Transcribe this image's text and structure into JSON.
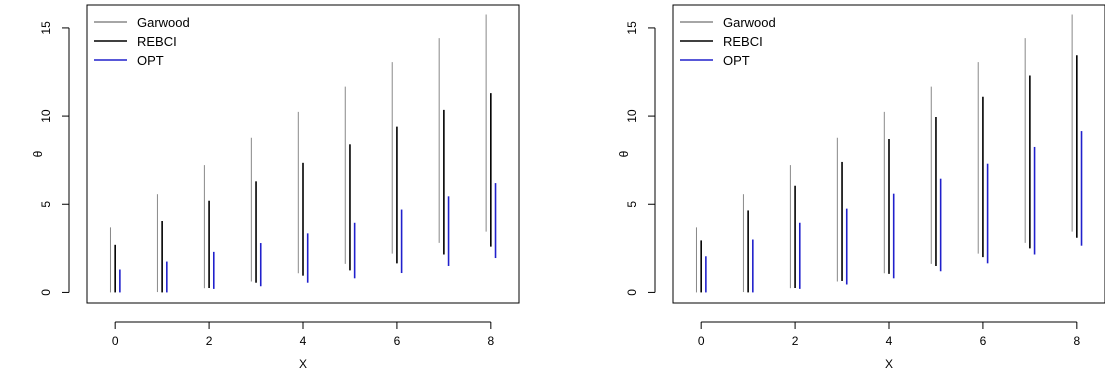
{
  "chart_data": [
    {
      "type": "interval",
      "xlabel": "X",
      "ylabel": "θ",
      "xlim": [
        -0.6,
        8.6
      ],
      "ylim": [
        -0.6,
        16.3
      ],
      "xticks": [
        0,
        2,
        4,
        6,
        8
      ],
      "yticks": [
        0,
        5,
        10,
        15
      ],
      "x": [
        0,
        1,
        2,
        3,
        4,
        5,
        6,
        7,
        8
      ],
      "legend_position": "top-left",
      "series": [
        {
          "name": "Garwood",
          "color": "#888888",
          "offset": -0.1,
          "lower": [
            0,
            0.02,
            0.24,
            0.62,
            1.09,
            1.62,
            2.2,
            2.81,
            3.45
          ],
          "upper": [
            3.69,
            5.57,
            7.22,
            8.77,
            10.24,
            11.67,
            13.06,
            14.42,
            15.76
          ]
        },
        {
          "name": "REBCI",
          "color": "#000000",
          "offset": 0,
          "lower": [
            0,
            0,
            0.25,
            0.55,
            0.95,
            1.25,
            1.65,
            2.15,
            2.6
          ],
          "upper": [
            2.7,
            4.05,
            5.2,
            6.3,
            7.35,
            8.4,
            9.4,
            10.35,
            11.3
          ]
        },
        {
          "name": "OPT",
          "color": "#2020cc",
          "offset": 0.1,
          "lower": [
            0,
            0,
            0.2,
            0.35,
            0.55,
            0.8,
            1.1,
            1.5,
            1.95
          ],
          "upper": [
            1.3,
            1.75,
            2.3,
            2.8,
            3.35,
            3.95,
            4.7,
            5.45,
            6.2
          ]
        }
      ]
    },
    {
      "type": "interval",
      "xlabel": "X",
      "ylabel": "θ",
      "xlim": [
        -0.6,
        8.6
      ],
      "ylim": [
        -0.6,
        16.3
      ],
      "xticks": [
        0,
        2,
        4,
        6,
        8
      ],
      "yticks": [
        0,
        5,
        10,
        15
      ],
      "x": [
        0,
        1,
        2,
        3,
        4,
        5,
        6,
        7,
        8
      ],
      "legend_position": "top-left",
      "series": [
        {
          "name": "Garwood",
          "color": "#888888",
          "offset": -0.1,
          "lower": [
            0,
            0.02,
            0.24,
            0.62,
            1.09,
            1.62,
            2.2,
            2.81,
            3.45
          ],
          "upper": [
            3.69,
            5.57,
            7.22,
            8.77,
            10.24,
            11.67,
            13.06,
            14.42,
            15.76
          ]
        },
        {
          "name": "REBCI",
          "color": "#000000",
          "offset": 0,
          "lower": [
            0,
            0,
            0.25,
            0.65,
            1.05,
            1.5,
            2.0,
            2.5,
            3.1
          ],
          "upper": [
            2.95,
            4.65,
            6.05,
            7.4,
            8.7,
            9.95,
            11.1,
            12.3,
            13.45
          ]
        },
        {
          "name": "OPT",
          "color": "#2020cc",
          "offset": 0.1,
          "lower": [
            0,
            0,
            0.2,
            0.45,
            0.8,
            1.2,
            1.65,
            2.15,
            2.65
          ],
          "upper": [
            2.05,
            3.0,
            3.95,
            4.75,
            5.6,
            6.45,
            7.3,
            8.25,
            9.15
          ]
        }
      ]
    }
  ]
}
